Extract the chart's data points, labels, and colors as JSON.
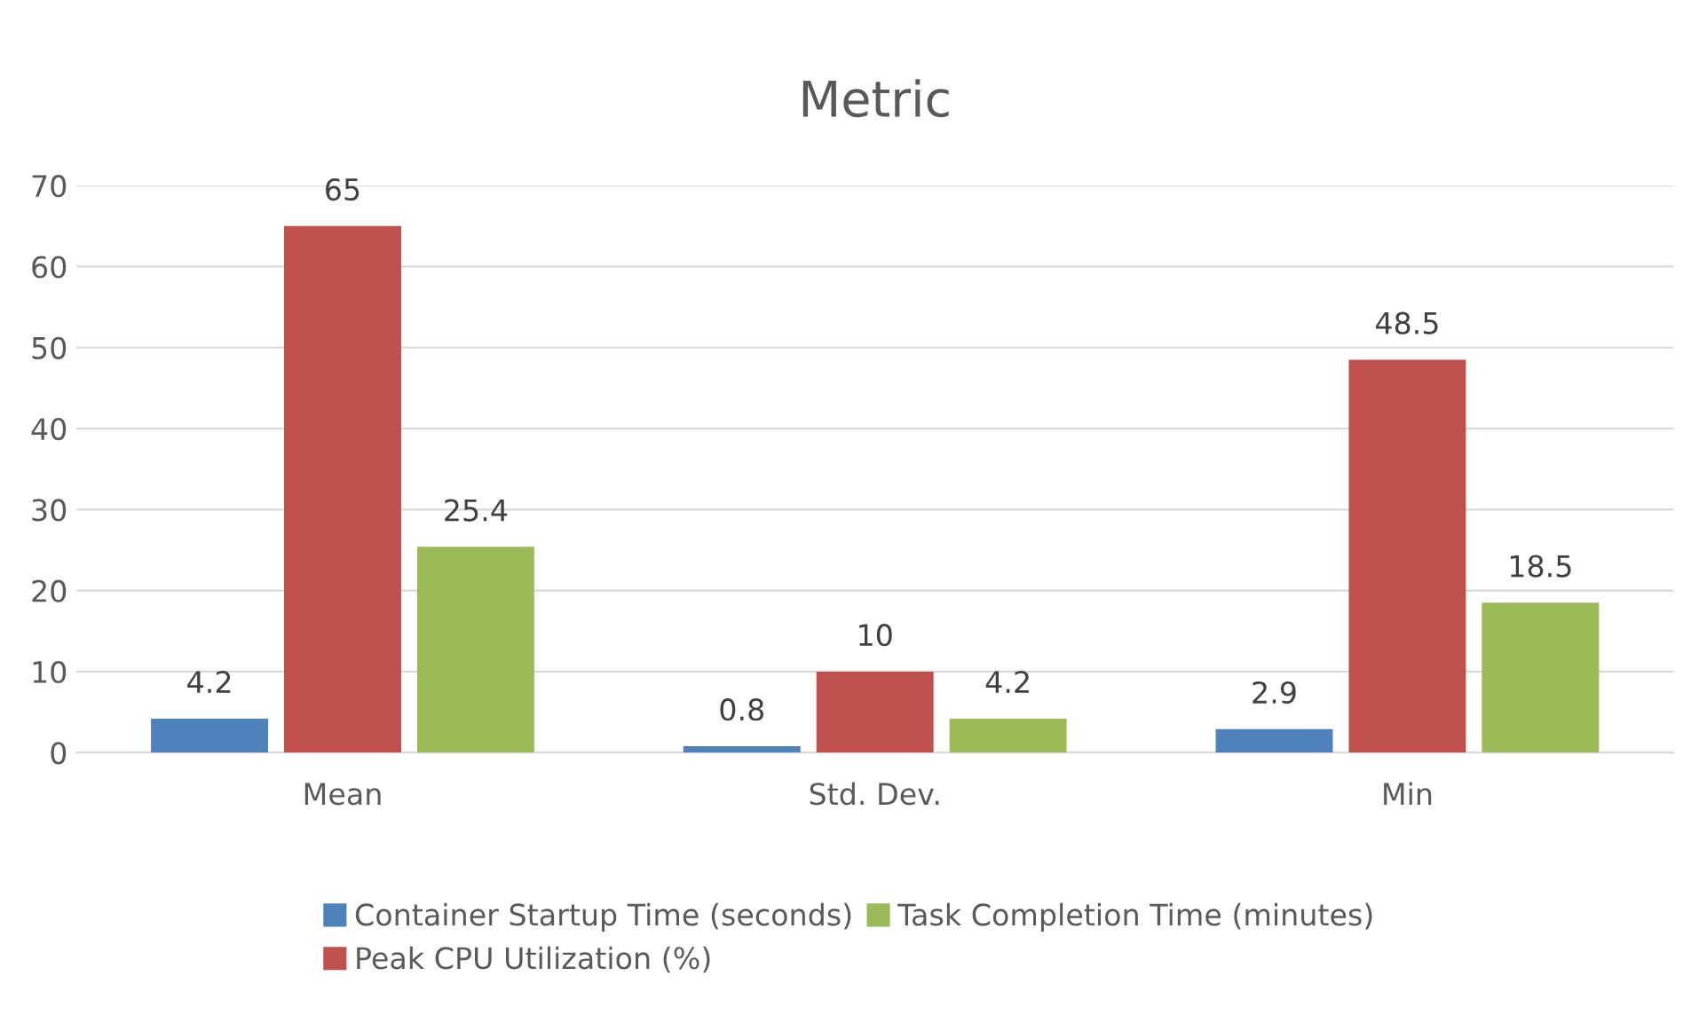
{
  "chart_data": {
    "type": "bar",
    "title": "Metric",
    "categories": [
      "Mean",
      "Std. Dev.",
      "Min"
    ],
    "series": [
      {
        "name": "Container Startup Time (seconds)",
        "color": "#4f81bd",
        "values": [
          4.2,
          0.8,
          2.9
        ]
      },
      {
        "name": "Peak CPU Utilization (%)",
        "color": "#c0504d",
        "values": [
          65,
          10,
          48.5
        ]
      },
      {
        "name": "Task Completion Time (minutes)",
        "color": "#9bbb59",
        "values": [
          25.4,
          4.2,
          18.5
        ]
      }
    ],
    "ylim": [
      0,
      70
    ],
    "yticks": [
      0,
      10,
      20,
      30,
      40,
      50,
      60,
      70
    ],
    "grid": "y",
    "legend": "bottom",
    "data_labels": true
  }
}
